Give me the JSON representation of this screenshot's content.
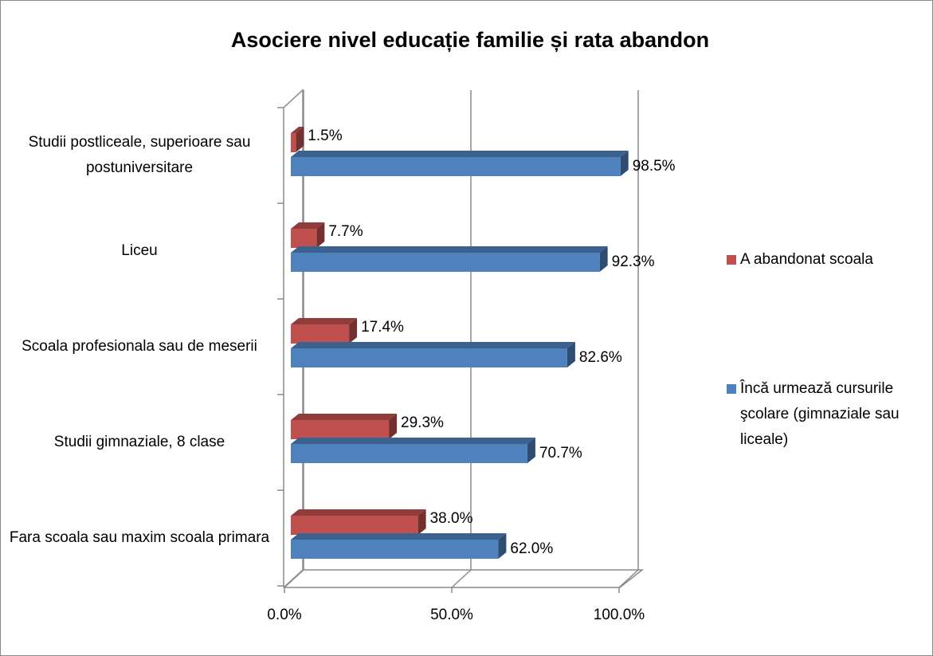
{
  "chart_data": {
    "type": "bar3d",
    "orientation": "horizontal",
    "title": "Asociere nivel educație familie și rata abandon",
    "categories": [
      "Studii postliceale, superioare sau postuniversitare",
      "Liceu",
      "Scoala profesionala sau de meserii",
      "Studii gimnaziale, 8 clase",
      "Fara scoala sau maxim scoala primara"
    ],
    "series": [
      {
        "name": "A abandonat scoala",
        "color": "#c0504d",
        "values": [
          1.5,
          7.7,
          17.4,
          29.3,
          38.0
        ],
        "value_labels": [
          "1.5%",
          "7.7%",
          "17.4%",
          "29.3%",
          "38.0%"
        ]
      },
      {
        "name": "Încă urmează cursurile şcolare (gimnaziale sau liceale)",
        "color": "#4f81bd",
        "values": [
          98.5,
          92.3,
          82.6,
          70.7,
          62.0
        ],
        "value_labels": [
          "98.5%",
          "92.3%",
          "82.6%",
          "70.7%",
          "62.0%"
        ]
      }
    ],
    "xlim": [
      0,
      100
    ],
    "xticks": [
      {
        "value": 0,
        "label": "0.0%"
      },
      {
        "value": 50,
        "label": "50.0%"
      },
      {
        "value": 100,
        "label": "100.0%"
      }
    ],
    "grid": true,
    "legend": "right"
  }
}
